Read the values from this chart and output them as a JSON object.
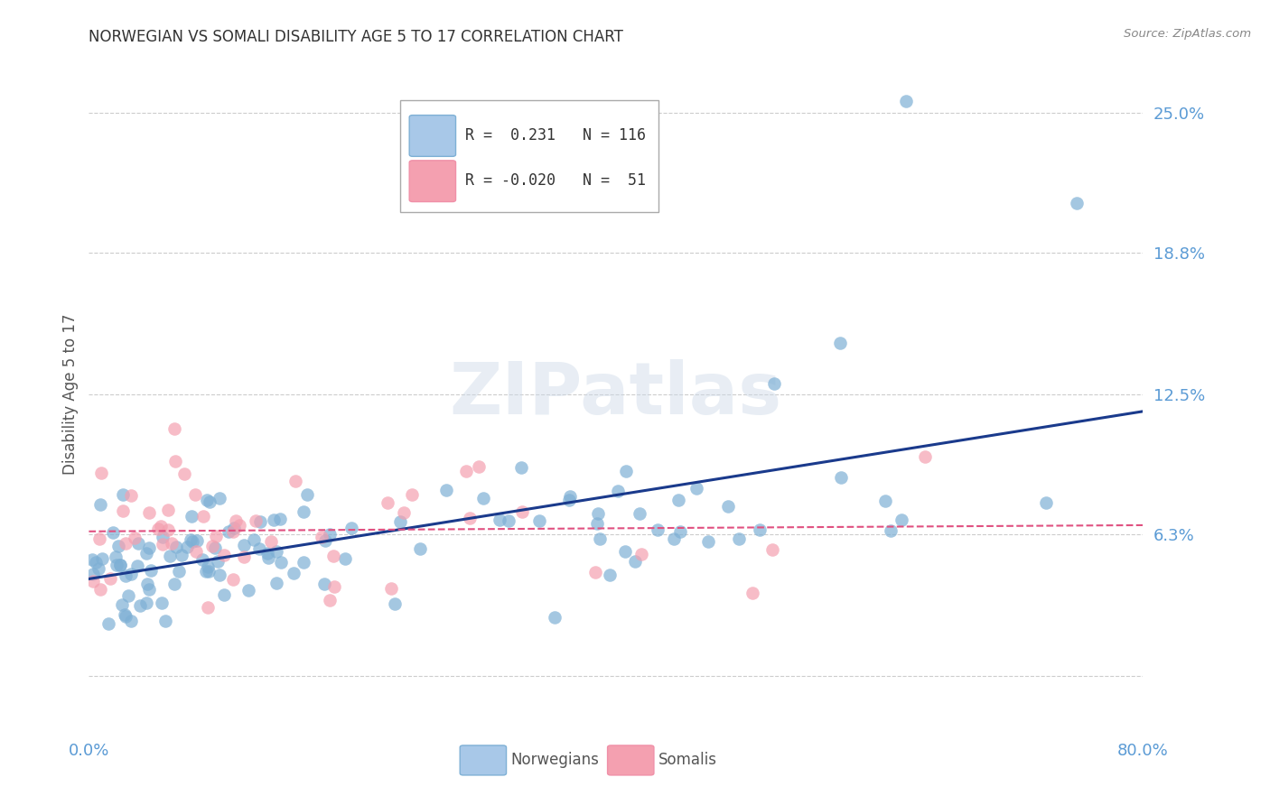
{
  "title": "NORWEGIAN VS SOMALI DISABILITY AGE 5 TO 17 CORRELATION CHART",
  "source": "Source: ZipAtlas.com",
  "ylabel_label": "Disability Age 5 to 17",
  "ylabel_ticks": [
    0.0,
    0.063,
    0.125,
    0.188,
    0.25
  ],
  "ylabel_tick_labels": [
    "",
    "6.3%",
    "12.5%",
    "18.8%",
    "25.0%"
  ],
  "xmin": 0.0,
  "xmax": 0.8,
  "ymin": -0.025,
  "ymax": 0.275,
  "grid_color": "#cccccc",
  "norwegian_color": "#7EB0D5",
  "somali_color": "#F4A0B0",
  "norwegian_line_color": "#1a3a8c",
  "somali_line_color": "#e05080",
  "norwegian_R": 0.231,
  "norwegian_N": 116,
  "somali_R": -0.02,
  "somali_N": 51,
  "legend_box_color_norwegian": "#a8c8e8",
  "legend_box_color_somali": "#f4a0b0",
  "watermark": "ZIPatlas",
  "tick_color": "#5b9bd5",
  "title_color": "#333333",
  "source_color": "#888888",
  "label_color": "#555555"
}
